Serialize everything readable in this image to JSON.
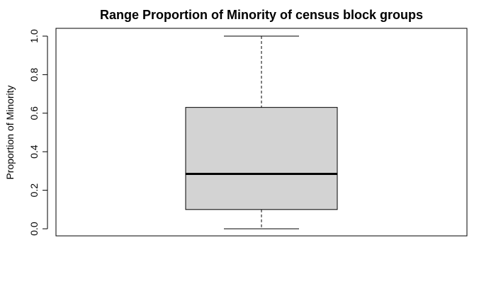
{
  "chart_data": {
    "type": "boxplot",
    "title": "Range Proportion of Minority of census block groups",
    "xlabel": "",
    "ylabel": "Proportion of Minority",
    "ylim": [
      0,
      1
    ],
    "yticks": [
      "0.0",
      "0.2",
      "0.4",
      "0.6",
      "0.8",
      "1.0"
    ],
    "box": {
      "min": 0.0,
      "q1": 0.1,
      "median": 0.285,
      "q3": 0.63,
      "max": 1.0
    },
    "grid": false,
    "colors": {
      "box_fill": "#d3d3d3",
      "stroke": "#000000"
    }
  }
}
